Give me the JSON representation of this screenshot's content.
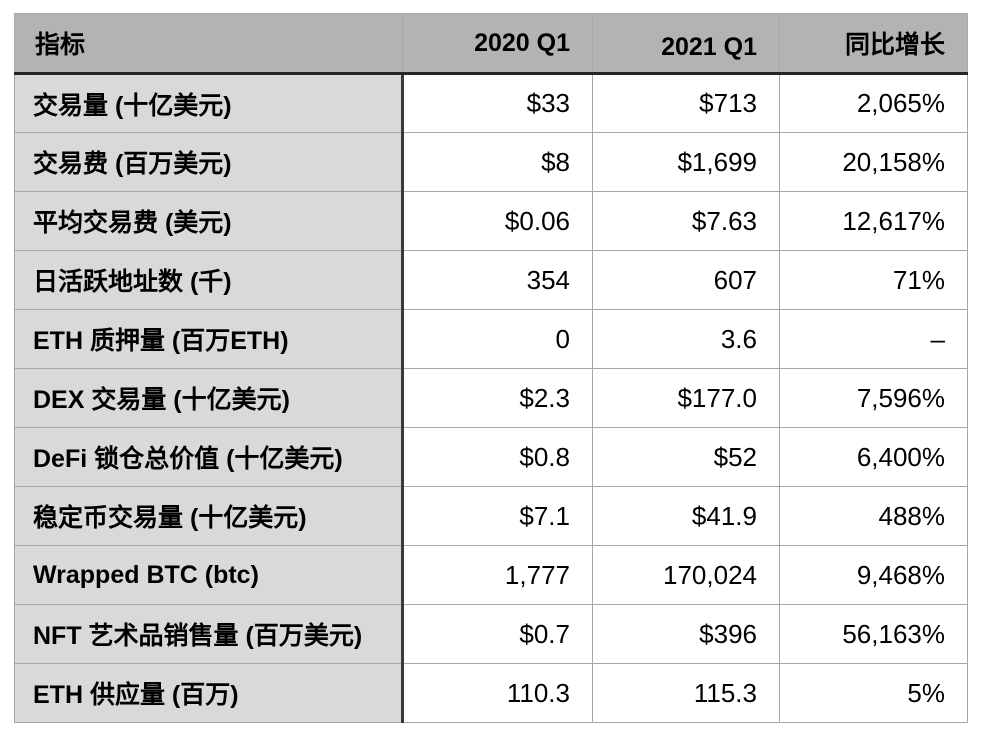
{
  "colors": {
    "header_bg": "#b3b3b3",
    "label_column_bg": "#d9d9d9",
    "grid_line": "#a6a6a6",
    "heavy_rule": "#262626",
    "text": "#000000",
    "cell_bg": "#ffffff"
  },
  "chart_data": {
    "type": "table",
    "columns": [
      "指标",
      "2020 Q1",
      "2021 Q1",
      "同比增长"
    ],
    "rows": [
      [
        "交易量 (十亿美元)",
        "$33",
        "$713",
        "2,065%"
      ],
      [
        "交易费 (百万美元)",
        "$8",
        "$1,699",
        "20,158%"
      ],
      [
        "平均交易费 (美元)",
        "$0.06",
        "$7.63",
        "12,617%"
      ],
      [
        "日活跃地址数 (千)",
        "354",
        "607",
        "71%"
      ],
      [
        "ETH 质押量 (百万ETH)",
        "0",
        "3.6",
        "–"
      ],
      [
        "DEX 交易量 (十亿美元)",
        "$2.3",
        "$177.0",
        "7,596%"
      ],
      [
        "DeFi 锁仓总价值 (十亿美元)",
        "$0.8",
        "$52",
        "6,400%"
      ],
      [
        "稳定币交易量 (十亿美元)",
        "$7.1",
        "$41.9",
        "488%"
      ],
      [
        "Wrapped BTC (btc)",
        "1,777",
        "170,024",
        "9,468%"
      ],
      [
        "NFT 艺术品销售量 (百万美元)",
        "$0.7",
        "$396",
        "56,163%"
      ],
      [
        "ETH 供应量 (百万)",
        "110.3",
        "115.3",
        "5%"
      ]
    ]
  }
}
